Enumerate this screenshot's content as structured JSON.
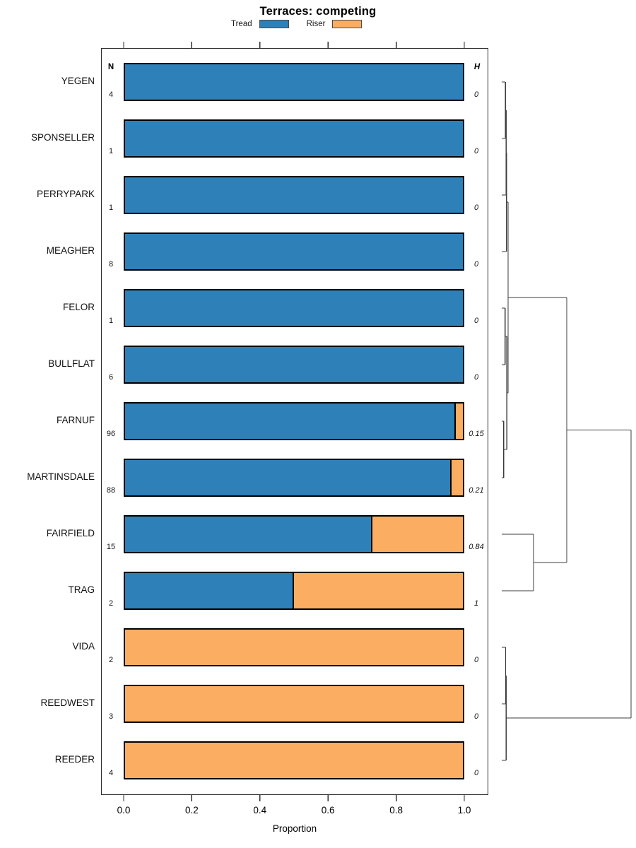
{
  "title": "Terraces: competing",
  "legend": {
    "items": [
      {
        "label": "Tread",
        "color": "#2E80B8"
      },
      {
        "label": "Riser",
        "color": "#FBAD62"
      }
    ]
  },
  "columns": {
    "n_header": "N",
    "h_header": "H"
  },
  "x_axis": {
    "label": "Proportion",
    "ticks": [
      "0.0",
      "0.2",
      "0.4",
      "0.6",
      "0.8",
      "1.0"
    ],
    "tick_values": [
      0,
      0.2,
      0.4,
      0.6,
      0.8,
      1.0
    ]
  },
  "chart_data": {
    "type": "bar",
    "orientation": "horizontal-stacked",
    "title": "Terraces: competing",
    "xlabel": "Proportion",
    "xlim": [
      0,
      1
    ],
    "legend_position": "top",
    "grid": false,
    "categories": [
      "YEGEN",
      "SPONSELLER",
      "PERRYPARK",
      "MEAGHER",
      "FELOR",
      "BULLFLAT",
      "FARNUF",
      "MARTINSDALE",
      "FAIRFIELD",
      "TRAG",
      "VIDA",
      "REEDWEST",
      "REEDER"
    ],
    "series": [
      {
        "name": "Tread",
        "color": "#2E80B8",
        "values": [
          1,
          1,
          1,
          1,
          1,
          1,
          0.979,
          0.966,
          0.733,
          0.5,
          0,
          0,
          0
        ]
      },
      {
        "name": "Riser",
        "color": "#FBAD62",
        "values": [
          0,
          0,
          0,
          0,
          0,
          0,
          0.021,
          0.034,
          0.267,
          0.5,
          1,
          1,
          1
        ]
      }
    ],
    "N": [
      "4",
      "1",
      "1",
      "8",
      "1",
      "6",
      "96",
      "88",
      "15",
      "2",
      "2",
      "3",
      "4"
    ],
    "H": [
      "0",
      "0",
      "0",
      "0",
      "0",
      "0",
      "0.15",
      "0.21",
      "0.84",
      "1",
      "0",
      "0",
      "0"
    ]
  },
  "dendrogram": {
    "side": "right",
    "merges": [
      {
        "id": "n1",
        "a": "YEGEN",
        "b": "SPONSELLER",
        "h": 0.028
      },
      {
        "id": "n2",
        "a": "n1",
        "b": "PERRYPARK",
        "h": 0.034
      },
      {
        "id": "n3",
        "a": "n2",
        "b": "MEAGHER",
        "h": 0.036
      },
      {
        "id": "n4",
        "a": "FELOR",
        "b": "BULLFLAT",
        "h": 0.026
      },
      {
        "id": "n5",
        "a": "FARNUF",
        "b": "MARTINSDALE",
        "h": 0.016
      },
      {
        "id": "n6",
        "a": "n4",
        "b": "n5",
        "h": 0.04
      },
      {
        "id": "n7",
        "a": "n3",
        "b": "n6",
        "h": 0.049
      },
      {
        "id": "n8",
        "a": "FAIRFIELD",
        "b": "TRAG",
        "h": 0.246
      },
      {
        "id": "n9",
        "a": "n7",
        "b": "n8",
        "h": 0.503
      },
      {
        "id": "n10",
        "a": "VIDA",
        "b": "REEDWEST",
        "h": 0.03
      },
      {
        "id": "n11",
        "a": "n10",
        "b": "REEDER",
        "h": 0.034
      },
      {
        "id": "root",
        "a": "n9",
        "b": "n11",
        "h": 1.0
      }
    ]
  }
}
